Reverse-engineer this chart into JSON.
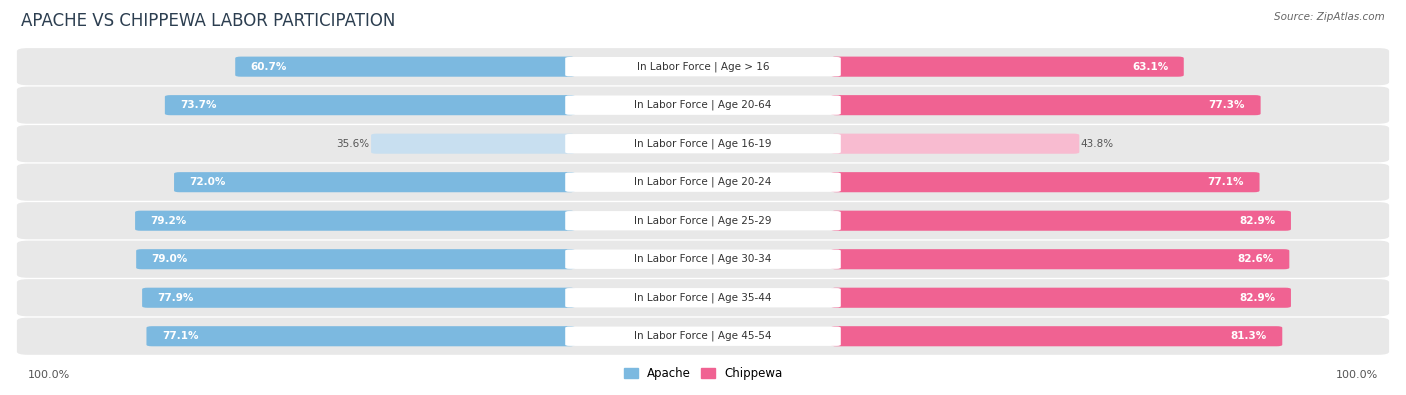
{
  "title": "APACHE VS CHIPPEWA LABOR PARTICIPATION",
  "source": "Source: ZipAtlas.com",
  "categories": [
    "In Labor Force | Age > 16",
    "In Labor Force | Age 20-64",
    "In Labor Force | Age 16-19",
    "In Labor Force | Age 20-24",
    "In Labor Force | Age 25-29",
    "In Labor Force | Age 30-34",
    "In Labor Force | Age 35-44",
    "In Labor Force | Age 45-54"
  ],
  "apache_values": [
    60.7,
    73.7,
    35.6,
    72.0,
    79.2,
    79.0,
    77.9,
    77.1
  ],
  "chippewa_values": [
    63.1,
    77.3,
    43.8,
    77.1,
    82.9,
    82.6,
    82.9,
    81.3
  ],
  "apache_color_full": "#7cb9e0",
  "apache_color_light": "#c8dff0",
  "chippewa_color_full": "#f06292",
  "chippewa_color_light": "#f8bbd0",
  "background_color": "#ffffff",
  "row_bg_color": "#eeeeee",
  "max_value": 100.0,
  "legend_apache": "Apache",
  "legend_chippewa": "Chippewa",
  "title_fontsize": 12,
  "label_fontsize": 7.5,
  "value_fontsize": 7.5,
  "light_threshold": 50.0
}
